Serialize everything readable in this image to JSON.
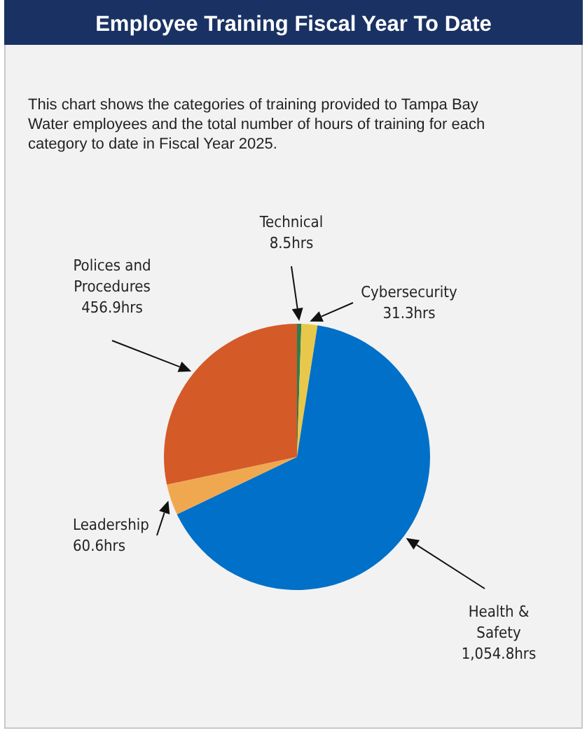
{
  "chart_data": {
    "type": "pie",
    "title": "Employee Training Fiscal Year To Date",
    "subtitle": "This chart shows the categories of training provided to Tampa Bay Water employees and the total number of hours of training for each category to date in Fiscal Year 2025.",
    "categories": [
      "Technical",
      "Cybersecurity",
      "Health & Safety",
      "Leadership",
      "Polices and Procedures"
    ],
    "values": [
      8.5,
      31.3,
      1054.8,
      60.6,
      456.9
    ],
    "value_labels": [
      "8.5hrs",
      "31.3hrs",
      "1,054.8hrs",
      "60.6hrs",
      "456.9hrs"
    ],
    "colors": [
      "#2e7d4f",
      "#e8c84a",
      "#0070c8",
      "#f0a850",
      "#d45a28"
    ]
  }
}
